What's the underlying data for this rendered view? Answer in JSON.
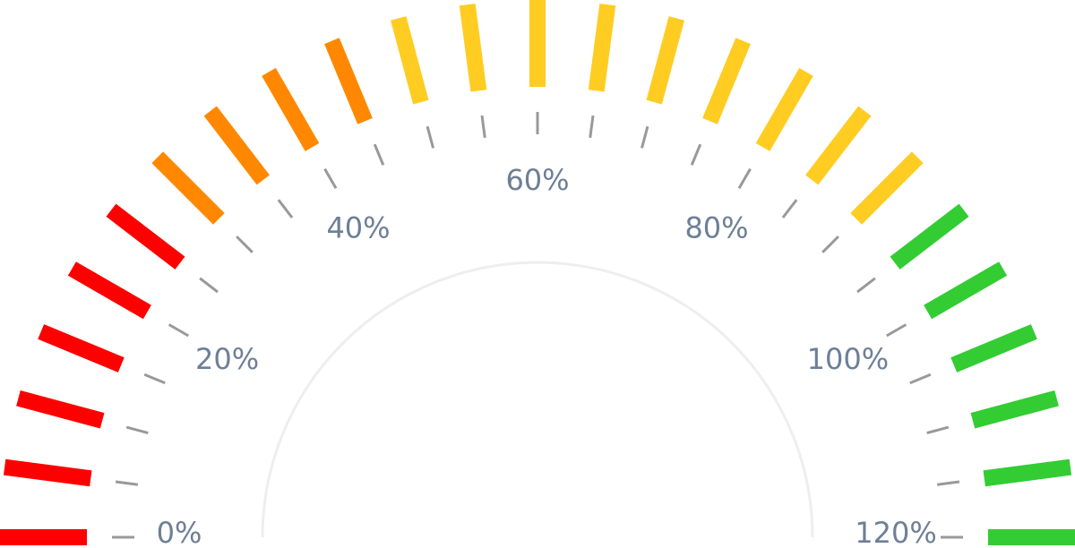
{
  "chart_data": {
    "type": "gauge",
    "min": 0,
    "max": 120,
    "segment_count": 25,
    "ticks": [
      {
        "value": 0,
        "label": "0%"
      },
      {
        "value": 20,
        "label": "20%"
      },
      {
        "value": 40,
        "label": "40%"
      },
      {
        "value": 60,
        "label": "60%"
      },
      {
        "value": 80,
        "label": "80%"
      },
      {
        "value": 100,
        "label": "100%"
      },
      {
        "value": 120,
        "label": "120%"
      }
    ],
    "color_bands": [
      {
        "from": 0,
        "to": 25,
        "color": "#ff0000"
      },
      {
        "from": 25,
        "to": 45,
        "color": "#ff8800"
      },
      {
        "from": 45,
        "to": 90,
        "color": "#ffcc22"
      },
      {
        "from": 90,
        "to": 120,
        "color": "#33cc33"
      }
    ],
    "minor_tick_color": "#999999",
    "inner_arc_color": "#eeeeee"
  }
}
